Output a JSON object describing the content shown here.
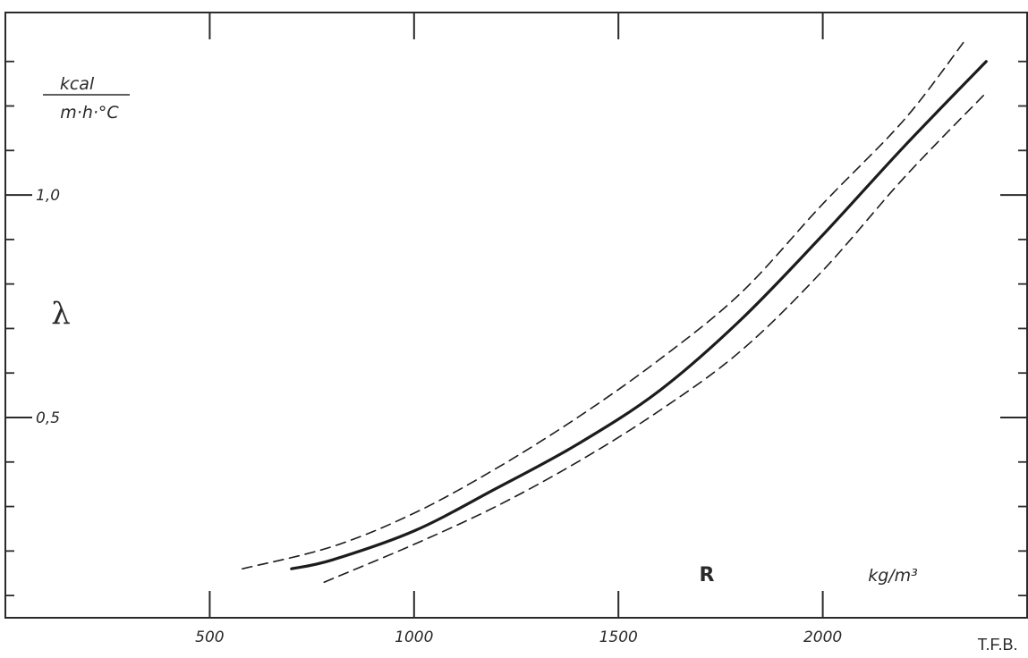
{
  "chart_data": {
    "type": "line",
    "x_unit": "kg/m³",
    "x_label": "R",
    "y_symbol": "λ",
    "y_unit_numerator": "kcal",
    "y_unit_denominator": "m·h·°C",
    "credit": "T.F.B.",
    "xlim": [
      0,
      2500
    ],
    "ylim": [
      0.05,
      1.41
    ],
    "x_ticks": [
      {
        "value": 500,
        "label": "500"
      },
      {
        "value": 1000,
        "label": "1000"
      },
      {
        "value": 1500,
        "label": "1500"
      },
      {
        "value": 2000,
        "label": "2000"
      }
    ],
    "y_ticks": [
      {
        "value": 0.5,
        "label": "0,5"
      },
      {
        "value": 1.0,
        "label": "1,0"
      }
    ],
    "y_minor_ticks": [
      0.1,
      0.2,
      0.3,
      0.4,
      0.6,
      0.7,
      0.8,
      0.9,
      1.1,
      1.2,
      1.3
    ],
    "series": [
      {
        "style": "solid",
        "color": "#1c1c1c",
        "points": [
          [
            700,
            0.16
          ],
          [
            800,
            0.18
          ],
          [
            1000,
            0.245
          ],
          [
            1200,
            0.34
          ],
          [
            1400,
            0.44
          ],
          [
            1600,
            0.56
          ],
          [
            1800,
            0.72
          ],
          [
            2000,
            0.91
          ],
          [
            2200,
            1.11
          ],
          [
            2400,
            1.3
          ]
        ]
      },
      {
        "style": "dashed",
        "color": "#1c1c1c",
        "points": [
          [
            580,
            0.16
          ],
          [
            800,
            0.21
          ],
          [
            1000,
            0.285
          ],
          [
            1200,
            0.385
          ],
          [
            1400,
            0.5
          ],
          [
            1600,
            0.63
          ],
          [
            1800,
            0.78
          ],
          [
            2000,
            0.98
          ],
          [
            2200,
            1.17
          ],
          [
            2350,
            1.35
          ]
        ]
      },
      {
        "style": "dashed",
        "color": "#1c1c1c",
        "points": [
          [
            780,
            0.13
          ],
          [
            1000,
            0.215
          ],
          [
            1200,
            0.3
          ],
          [
            1400,
            0.4
          ],
          [
            1600,
            0.515
          ],
          [
            1800,
            0.65
          ],
          [
            2000,
            0.83
          ],
          [
            2200,
            1.04
          ],
          [
            2400,
            1.23
          ]
        ]
      }
    ]
  }
}
